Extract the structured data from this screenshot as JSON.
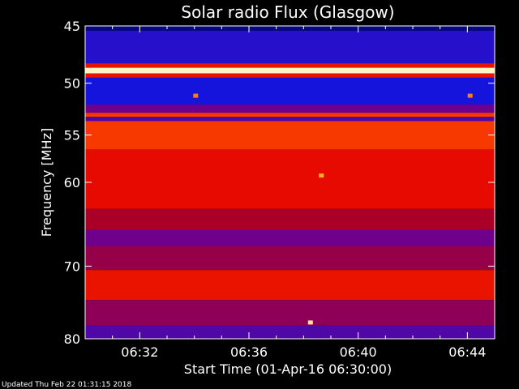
{
  "chart_data": {
    "type": "heatmap",
    "title": "Solar radio Flux (Glasgow)",
    "xlabel": "Start Time (01-Apr-16 06:30:00)",
    "ylabel": "Frequency [MHz]",
    "ylim": [
      45,
      80
    ],
    "y_inverted": true,
    "y_scale": "log",
    "xlim_minutes": [
      0,
      15
    ],
    "x_ticks": [
      {
        "label": "06:32",
        "minutes": 2
      },
      {
        "label": "06:36",
        "minutes": 6
      },
      {
        "label": "06:40",
        "minutes": 10
      },
      {
        "label": "06:44",
        "minutes": 14
      }
    ],
    "y_ticks": [
      45,
      50,
      55,
      60,
      70,
      80
    ],
    "colormap": "blue-red-yellow-white",
    "bands": [
      {
        "from": 45.0,
        "to": 45.4,
        "level": 0.05
      },
      {
        "from": 45.4,
        "to": 48.2,
        "level": 0.18
      },
      {
        "from": 48.2,
        "to": 48.6,
        "level": 0.62
      },
      {
        "from": 48.6,
        "to": 49.1,
        "level": 0.98
      },
      {
        "from": 49.1,
        "to": 49.5,
        "level": 0.62
      },
      {
        "from": 49.5,
        "to": 52.0,
        "level": 0.15
      },
      {
        "from": 52.0,
        "to": 52.8,
        "level": 0.3
      },
      {
        "from": 52.8,
        "to": 53.2,
        "level": 0.7
      },
      {
        "from": 53.2,
        "to": 53.6,
        "level": 0.25
      },
      {
        "from": 53.6,
        "to": 56.5,
        "level": 0.7
      },
      {
        "from": 56.5,
        "to": 63.0,
        "level": 0.6
      },
      {
        "from": 63.0,
        "to": 65.5,
        "level": 0.45
      },
      {
        "from": 65.5,
        "to": 67.5,
        "level": 0.3
      },
      {
        "from": 67.5,
        "to": 70.5,
        "level": 0.4
      },
      {
        "from": 70.5,
        "to": 74.5,
        "level": 0.62
      },
      {
        "from": 74.5,
        "to": 78.0,
        "level": 0.38
      },
      {
        "from": 78.0,
        "to": 80.0,
        "level": 0.25
      }
    ],
    "features": [
      {
        "freq": 59.3,
        "minutes": 8.65,
        "level": 0.85
      },
      {
        "freq": 77.7,
        "minutes": 8.25,
        "level": 0.95
      },
      {
        "freq": 51.2,
        "minutes": 4.05,
        "level": 0.8
      },
      {
        "freq": 51.2,
        "minutes": 14.1,
        "level": 0.8
      }
    ]
  },
  "footer": {
    "updated": "Updated Thu Feb 22 01:31:15 2018"
  }
}
